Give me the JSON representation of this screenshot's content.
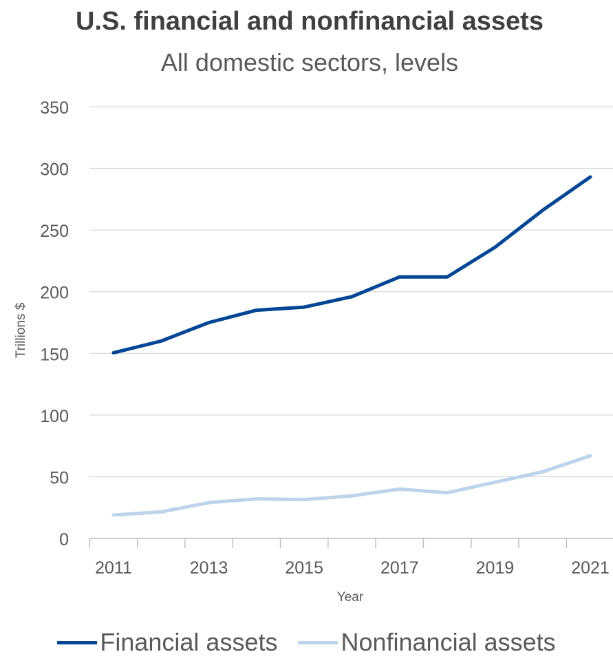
{
  "chart_data": {
    "type": "line",
    "title": "U.S. financial and nonfinancial assets",
    "subtitle": "All domestic sectors, levels",
    "xlabel": "Year",
    "ylabel": "Trillions $",
    "x": [
      2011,
      2012,
      2013,
      2014,
      2015,
      2016,
      2017,
      2018,
      2019,
      2020,
      2021
    ],
    "x_tick_labels": [
      "2011",
      "2013",
      "2015",
      "2017",
      "2019",
      "2021"
    ],
    "y_tick_labels": [
      "0",
      "50",
      "100",
      "150",
      "200",
      "250",
      "300",
      "350"
    ],
    "ylim": [
      0,
      350
    ],
    "grid": true,
    "legend_position": "bottom",
    "series": [
      {
        "name": "Financial assets",
        "color": "#034694",
        "values": [
          150.5,
          160,
          175,
          185,
          187.5,
          196,
          212,
          212,
          236,
          266,
          293
        ]
      },
      {
        "name": "Nonfinancial assets",
        "color": "#bdd3ea",
        "values": [
          19,
          21.5,
          29,
          32,
          31.5,
          34.5,
          40,
          37,
          45.5,
          54,
          67
        ]
      }
    ]
  }
}
